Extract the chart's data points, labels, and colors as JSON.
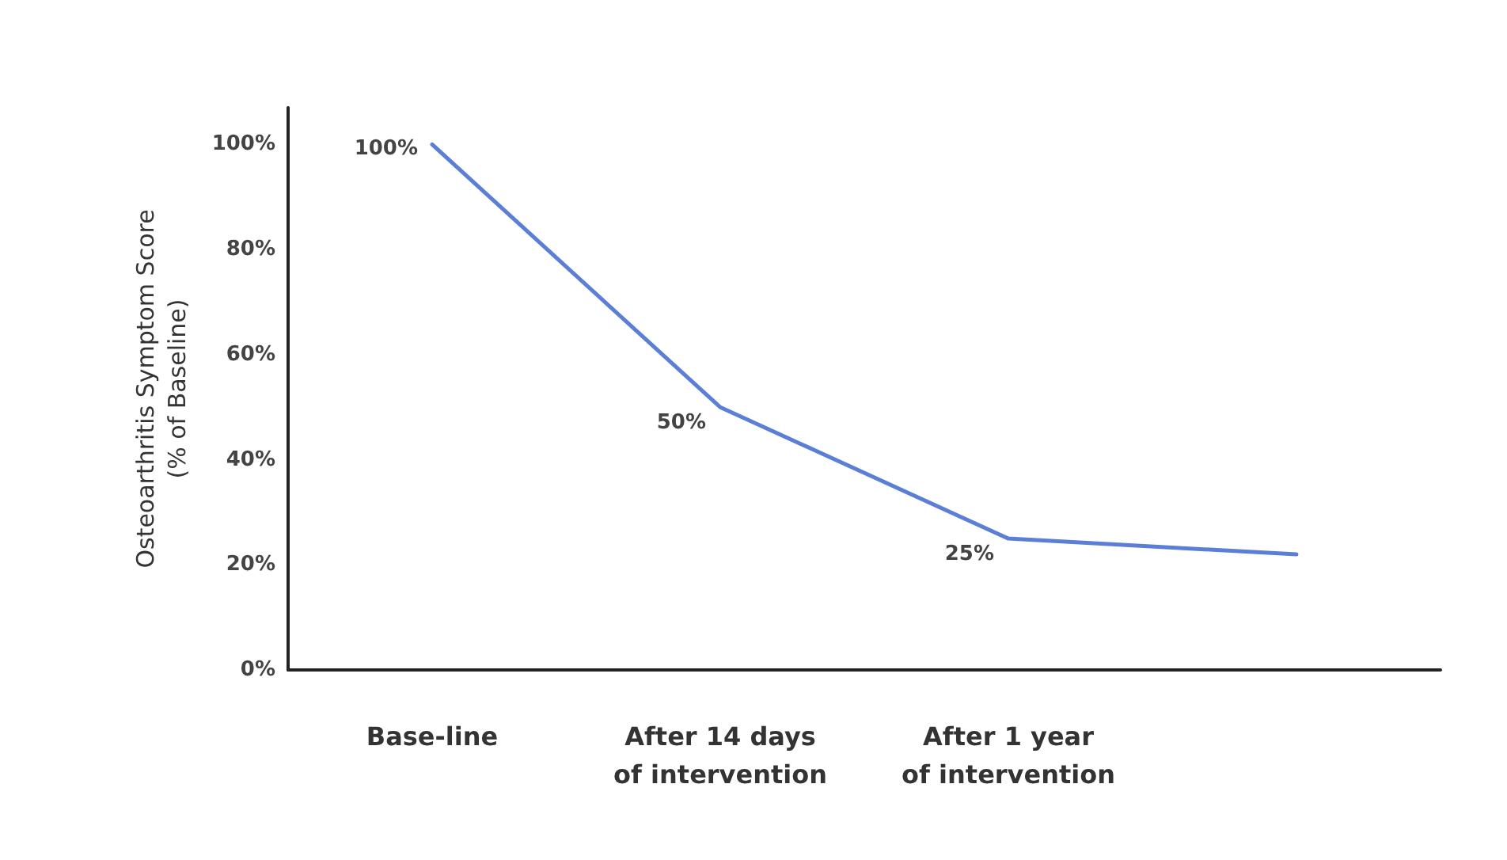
{
  "chart_data": {
    "type": "line",
    "ylabel": "Osteoarthritis Symptom Score\n(% of Baseline)",
    "categories": [
      "Base-line",
      "After 14 days\nof intervention",
      "After 1 year\nof intervention",
      null
    ],
    "series": [
      {
        "color": "#5b7fd6",
        "values": [
          100,
          50,
          25,
          22
        ],
        "value_labels": [
          "100%",
          "50%",
          "25%",
          null
        ]
      }
    ],
    "ylim": [
      0,
      107
    ],
    "yticks": [
      {
        "value": 0,
        "label": "0%"
      },
      {
        "value": 20,
        "label": "20%"
      },
      {
        "value": 40,
        "label": "40%"
      },
      {
        "value": 60,
        "label": "60%"
      },
      {
        "value": 80,
        "label": "80%"
      },
      {
        "value": 100,
        "label": "100%"
      }
    ],
    "grid": false,
    "marker": "none",
    "line_style": "solid"
  }
}
